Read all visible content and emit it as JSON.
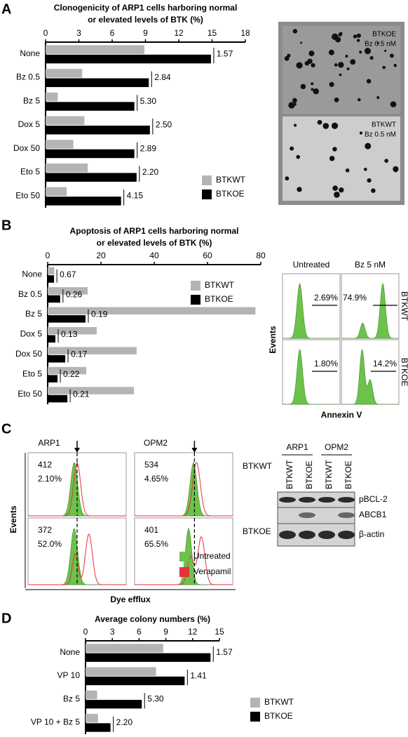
{
  "chart_data": [
    {
      "type": "bar",
      "orientation": "horizontal",
      "title": [
        "Clonogenicity of ARP1 cells harboring normal",
        "or elevated levels of BTK (%)"
      ],
      "categories": [
        "None",
        "Bz 0.5",
        "Bz 5",
        "Dox 5",
        "Dox 50",
        "Eto 5",
        "Eto 50"
      ],
      "series": [
        {
          "name": "BTKWT",
          "color": "#b4b4b4",
          "values": [
            8.9,
            3.3,
            1.1,
            3.5,
            2.5,
            3.8,
            1.9
          ]
        },
        {
          "name": "BTKOE",
          "color": "#000000",
          "values": [
            14.9,
            9.3,
            8.0,
            9.4,
            8.0,
            8.2,
            6.8
          ]
        }
      ],
      "annotations": [
        "1.57",
        "2.84",
        "5.30",
        "2.50",
        "2.89",
        "2.20",
        "4.15"
      ],
      "xlim": [
        0,
        18
      ],
      "xticks": [
        0,
        3,
        6,
        9,
        12,
        15,
        18
      ]
    },
    {
      "type": "bar",
      "orientation": "horizontal",
      "title": [
        "Apoptosis of ARP1 cells harboring normal",
        "or elevated levels of BTK (%)"
      ],
      "categories": [
        "None",
        "Bz 0.5",
        "Bz 5",
        "Dox 5",
        "Dox 50",
        "Eto 5",
        "Eto 50"
      ],
      "series": [
        {
          "name": "BTKWT",
          "color": "#b4b4b4",
          "values": [
            2.5,
            15,
            78,
            18.4,
            33.4,
            14.5,
            32.4
          ]
        },
        {
          "name": "BTKOE",
          "color": "#000000",
          "values": [
            2.4,
            4.7,
            14.2,
            2.9,
            6.6,
            3.7,
            7.4
          ]
        }
      ],
      "annotations": [
        "0.67",
        "0.26",
        "0.19",
        "0.13",
        "0.17",
        "0.22",
        "0.21"
      ],
      "xlim": [
        0,
        80
      ],
      "xticks": [
        0,
        20,
        40,
        60,
        80
      ]
    },
    {
      "type": "bar",
      "orientation": "horizontal",
      "title": [
        "Average colony numbers (%)"
      ],
      "categories": [
        "None",
        "VP 10",
        "Bz 5",
        "VP 10 + Bz 5"
      ],
      "series": [
        {
          "name": "BTKWT",
          "color": "#b4b4b4",
          "values": [
            8.7,
            7.9,
            1.3,
            1.4
          ]
        },
        {
          "name": "BTKOE",
          "color": "#000000",
          "values": [
            14.0,
            11.1,
            6.3,
            2.8
          ]
        }
      ],
      "annotations": [
        "1.57",
        "1.41",
        "5.30",
        "2.20"
      ],
      "xlim": [
        0,
        15
      ],
      "xticks": [
        0,
        3,
        6,
        9,
        12,
        15
      ]
    }
  ],
  "panel_labels": [
    "A",
    "B",
    "C",
    "D"
  ],
  "colony_images": [
    {
      "label": "BTKOE",
      "sublabel": "Bz 0.5 nM"
    },
    {
      "label": "BTKWT",
      "sublabel": "Bz 0.5 nM"
    }
  ],
  "apoptosis_flow": {
    "columns": [
      "Untreated",
      "Bz 5 nM"
    ],
    "rows": [
      "BTKWT",
      "BTKOE"
    ],
    "y_label": "Events",
    "x_label": "Annexin V",
    "percentages": [
      [
        "2.69%",
        "74.9%"
      ],
      [
        "1.80%",
        "14.2%"
      ]
    ]
  },
  "efflux_flow": {
    "columns": [
      "ARP1",
      "OPM2"
    ],
    "rows": [
      "BTKWT",
      "BTKOE"
    ],
    "y_label": "Events",
    "x_label": "Dye efflux",
    "counts": [
      [
        "412",
        "534"
      ],
      [
        "372",
        "401"
      ]
    ],
    "percentages": [
      [
        "2.10%",
        "4.65%"
      ],
      [
        "52.0%",
        "65.5%"
      ]
    ],
    "legend": [
      {
        "name": "Untreated",
        "color": "#6cc24a"
      },
      {
        "name": "Verapamil",
        "color": "#e8313b"
      }
    ]
  },
  "western_blot": {
    "groups": [
      "ARP1",
      "OPM2"
    ],
    "lanes": [
      "BTKWT",
      "BTKOE",
      "BTKWT",
      "BTKOE"
    ],
    "bands": [
      "pBCL-2",
      "ABCB1",
      "β-actin"
    ]
  }
}
